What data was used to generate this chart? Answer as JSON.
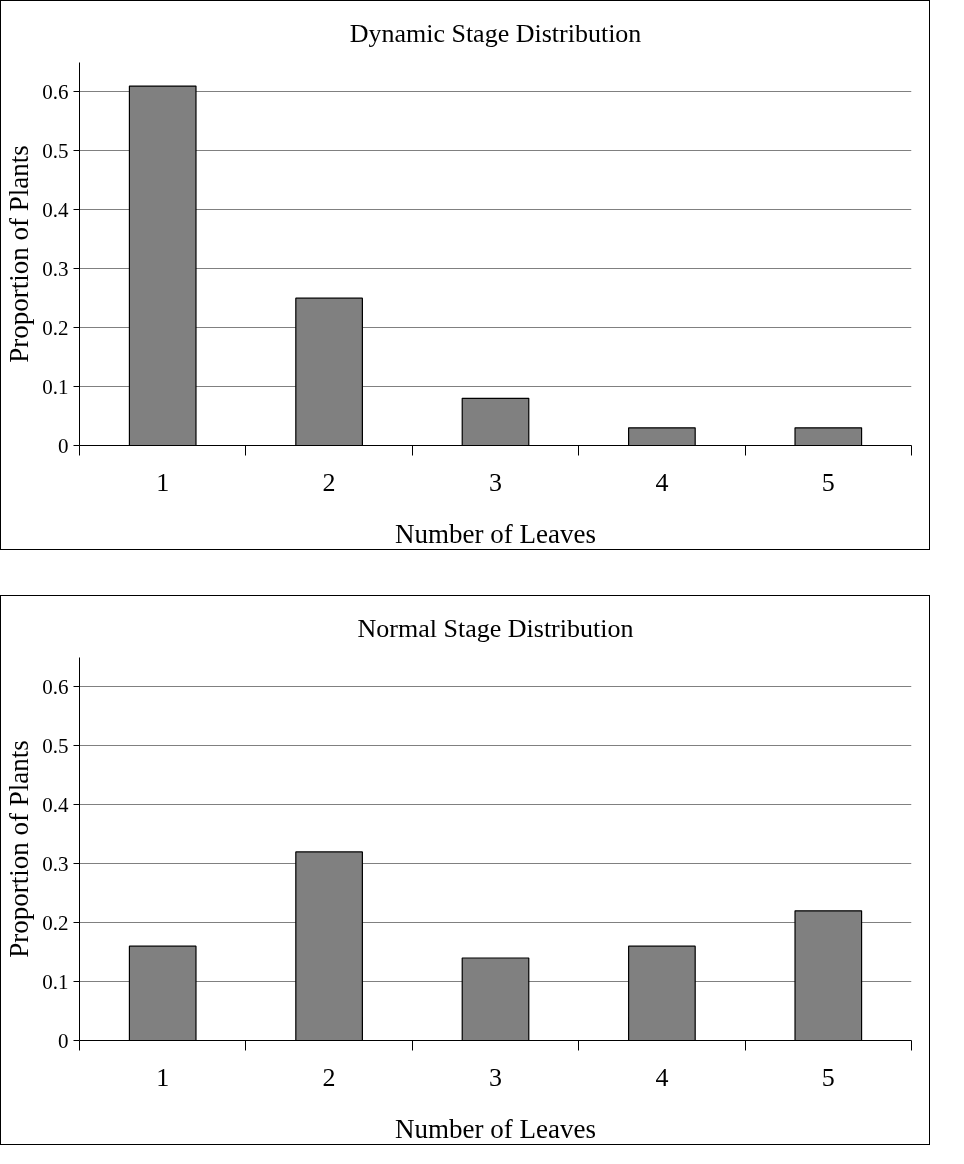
{
  "chart_data": [
    {
      "type": "bar",
      "title": "Dynamic Stage Distribution",
      "xlabel": "Number of Leaves",
      "ylabel": "Proportion of Plants",
      "categories": [
        "1",
        "2",
        "3",
        "4",
        "5"
      ],
      "values": [
        0.61,
        0.25,
        0.08,
        0.03,
        0.03
      ],
      "color": "#808080",
      "ylim": [
        0,
        0.65
      ],
      "yticks": [
        0,
        0.1,
        0.2,
        0.3,
        0.4,
        0.5,
        0.6
      ],
      "grid": "y"
    },
    {
      "type": "bar",
      "title": "Normal Stage Distribution",
      "xlabel": "Number of Leaves",
      "ylabel": "Proportion of Plants",
      "categories": [
        "1",
        "2",
        "3",
        "4",
        "5"
      ],
      "values": [
        0.16,
        0.32,
        0.14,
        0.16,
        0.22
      ],
      "color": "#808080",
      "ylim": [
        0,
        0.65
      ],
      "yticks": [
        0,
        0.1,
        0.2,
        0.3,
        0.4,
        0.5,
        0.6
      ],
      "grid": "y"
    }
  ]
}
